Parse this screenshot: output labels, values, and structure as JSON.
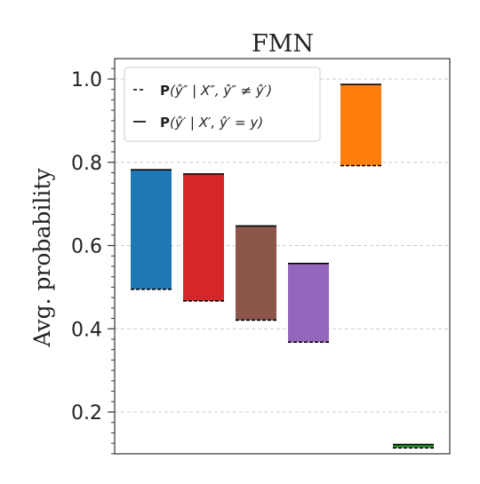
{
  "chart_data": {
    "type": "floating-bar",
    "title": "FMN",
    "ylabel": "Avg. probability",
    "xlabel": "",
    "ylim": [
      0.1,
      1.05
    ],
    "yticks": [
      0.2,
      0.4,
      0.6,
      0.8,
      1.0
    ],
    "ytick_labels": [
      "0.2",
      "0.4",
      "0.6",
      "0.8",
      "1.0"
    ],
    "grid": "horizontal-dashed",
    "legend_position": "top-left",
    "legend": [
      {
        "style": "dashed",
        "label_bold": "P",
        "label_rest": "(ŷ″ | X″, ŷ″ ≠ ŷ′)"
      },
      {
        "style": "solid",
        "label_bold": "P",
        "label_rest": "(ŷ′ | X′, ŷ′ = y)"
      }
    ],
    "bars": [
      {
        "bottom": 0.495,
        "top": 0.782,
        "color": "#1f77b4"
      },
      {
        "bottom": 0.467,
        "top": 0.772,
        "color": "#d62728"
      },
      {
        "bottom": 0.421,
        "top": 0.647,
        "color": "#8c564b"
      },
      {
        "bottom": 0.368,
        "top": 0.557,
        "color": "#9467bd"
      },
      {
        "bottom": 0.792,
        "top": 0.987,
        "color": "#ff7f0e"
      },
      {
        "bottom": 0.114,
        "top": 0.122,
        "color": "#2ca02c"
      }
    ]
  }
}
